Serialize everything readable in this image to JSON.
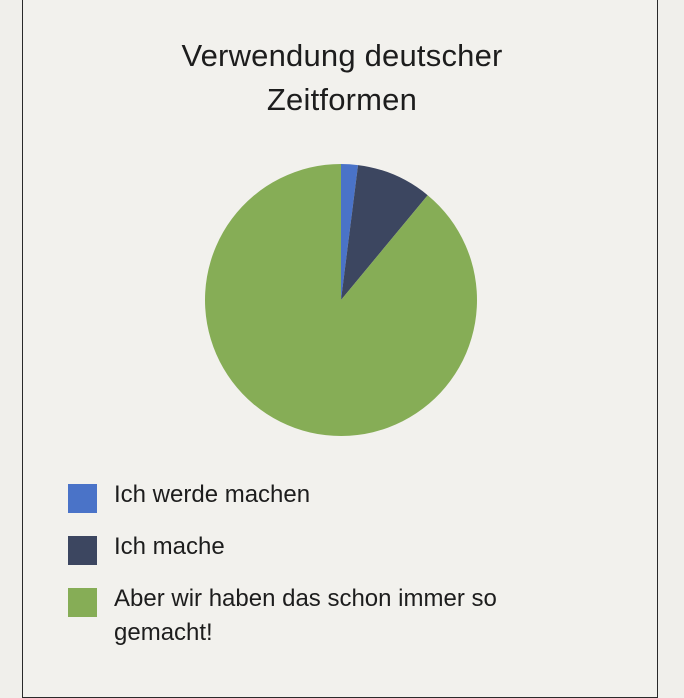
{
  "chart_data": {
    "type": "pie",
    "title": "Verwendung deutscher Zeitformen",
    "title_lines": [
      "Verwendung deutscher",
      "Zeitformen"
    ],
    "categories": [
      "Ich werde machen",
      "Ich mache",
      "Aber wir haben das schon immer so gemacht!"
    ],
    "values": [
      2,
      9,
      89
    ],
    "colors": [
      "#4a73c8",
      "#3c4660",
      "#86ad56"
    ],
    "legend_position": "bottom-left",
    "start_angle": "12 o'clock",
    "direction": "clockwise"
  },
  "legend": {
    "items": [
      {
        "label": "Ich werde machen",
        "color": "#4a73c8"
      },
      {
        "label": "Ich mache",
        "color": "#3c4660"
      },
      {
        "label": "Aber wir haben das schon immer so gemacht!",
        "color": "#86ad56"
      }
    ]
  }
}
